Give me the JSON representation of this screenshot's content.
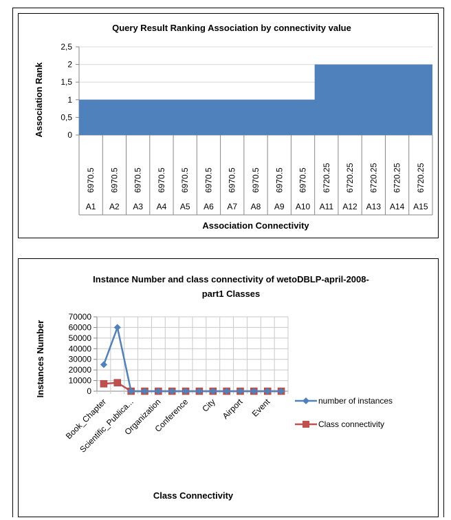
{
  "chart_data": [
    {
      "type": "area",
      "title": "Query  Result Ranking Association by connectivity value",
      "xlabel": "Association Connectivity",
      "ylabel": "Association Rank",
      "ylim": [
        0,
        2.5
      ],
      "yticks": [
        "0",
        "0,5",
        "1",
        "1,5",
        "2",
        "2,5"
      ],
      "ytick_values": [
        0,
        0.5,
        1,
        1.5,
        2,
        2.5
      ],
      "grid": true,
      "categories": [
        "A1",
        "A2",
        "A3",
        "A4",
        "A5",
        "A6",
        "A7",
        "A8",
        "A9",
        "A10",
        "A11",
        "A12",
        "A13",
        "A14",
        "A15"
      ],
      "connectivity": [
        "6970.5",
        "6970.5",
        "6970.5",
        "6970.5",
        "6970.5",
        "6970.5",
        "6970.5",
        "6970.5",
        "6970.5",
        "6970.5",
        "6720.25",
        "6720.25",
        "6720.25",
        "6720.25",
        "6720.25"
      ],
      "values": [
        1,
        1,
        1,
        1,
        1,
        1,
        1,
        1,
        1,
        1,
        2,
        2,
        2,
        2,
        2
      ],
      "color": "#4f81bd"
    },
    {
      "type": "line",
      "title_lines": [
        "Instance Number and class connectivity of  wetoDBLP-april-2008-",
        "part1 Classes"
      ],
      "xlabel": "Class Connectivity",
      "ylabel": "Instances Number",
      "ylim": [
        0,
        70000
      ],
      "yticks": [
        "0",
        "10000",
        "20000",
        "30000",
        "40000",
        "50000",
        "60000",
        "70000"
      ],
      "ytick_values": [
        0,
        10000,
        20000,
        30000,
        40000,
        50000,
        60000,
        70000
      ],
      "grid": true,
      "legend_position": "right",
      "category_labels": [
        "Book_Chapter",
        "Scientific_Publica...",
        "Organization",
        "Conference",
        "City",
        "Airport",
        "Event"
      ],
      "point_count": 14,
      "series": [
        {
          "name": "number of instances",
          "color": "#4f81bd",
          "marker": "diamond",
          "values": [
            25000,
            60000,
            0,
            0,
            0,
            0,
            0,
            0,
            0,
            0,
            0,
            0,
            0,
            0
          ]
        },
        {
          "name": "Class connectivity",
          "color": "#c0504d",
          "marker": "square",
          "values": [
            7000,
            8000,
            0,
            0,
            0,
            0,
            0,
            0,
            0,
            0,
            0,
            0,
            0,
            0
          ]
        }
      ]
    }
  ]
}
